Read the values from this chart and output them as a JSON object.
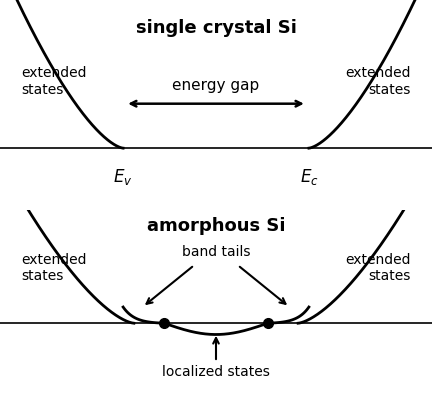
{
  "title_top": "single crystal Si",
  "title_bottom": "amorphous Si",
  "background_color": "#ffffff",
  "line_color": "#000000",
  "figsize": [
    4.32,
    4.04
  ],
  "dpi": 100,
  "energy_gap_label": "energy gap",
  "Ev_label": "$E_v$",
  "Ec_label": "$E_c$",
  "band_tails_label": "band tails",
  "localized_states_label": "localized states",
  "extended_states_label": "extended\nstates"
}
